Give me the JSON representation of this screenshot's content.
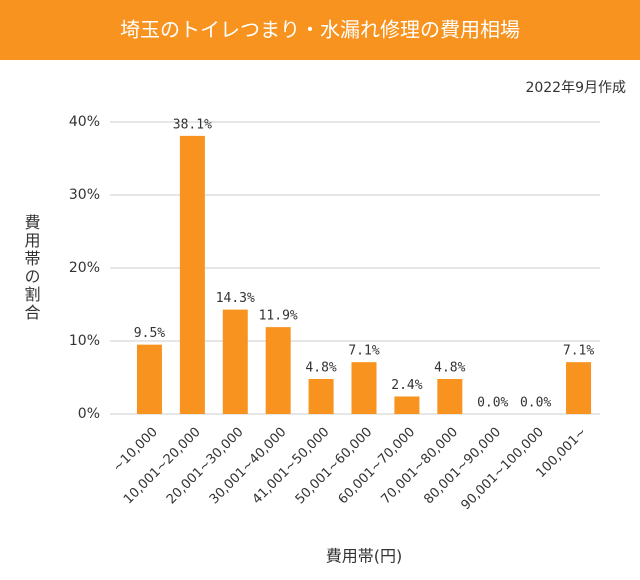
{
  "chart_data": {
    "type": "bar",
    "title": "埼玉のトイレつまり・水漏れ修理の費用相場",
    "subtitle": "2022年9月作成",
    "y_label": "費用帯の割合",
    "x_label": "費用帯(円)",
    "categories": [
      "~10,000",
      "10,001~20,000",
      "20,001~30,000",
      "30,001~40,000",
      "41,001~50,000",
      "50,001~60,000",
      "60,001~70,000",
      "70,001~80,000",
      "80,001~90,000",
      "90,001~100,000",
      "100,001~"
    ],
    "values": [
      9.5,
      38.1,
      14.3,
      11.9,
      4.8,
      7.1,
      2.4,
      4.8,
      0.0,
      0.0,
      7.1
    ],
    "value_labels": [
      "9.5%",
      "38.1%",
      "14.3%",
      "11.9%",
      "4.8%",
      "7.1%",
      "2.4%",
      "4.8%",
      "0.0%",
      "0.0%",
      "7.1%"
    ],
    "color": "#f7931e",
    "ylim": [
      0,
      40
    ],
    "yticks": [
      {
        "value": 0,
        "label": "0%"
      },
      {
        "value": 10,
        "label": "10%"
      },
      {
        "value": 20,
        "label": "20%"
      },
      {
        "value": 30,
        "label": "30%"
      },
      {
        "value": 40,
        "label": "40%"
      }
    ],
    "grid": true
  }
}
